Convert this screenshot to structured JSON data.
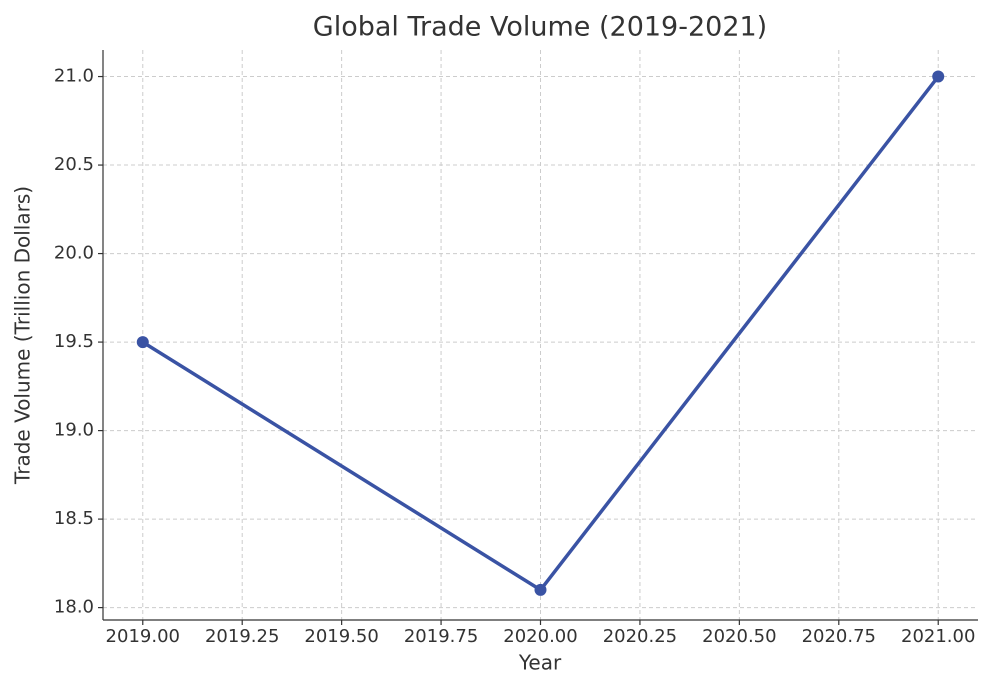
{
  "chart_data": {
    "type": "line",
    "title": "Global Trade Volume (2019-2021)",
    "x_label": "Year",
    "y_label": "Trade Volume (Trillion Dollars)",
    "x": [
      2019,
      2020,
      2021
    ],
    "series": [
      {
        "name": "Trade Volume",
        "color": "#3a53a4",
        "values": [
          19.5,
          18.1,
          21.0
        ]
      }
    ],
    "xlim": [
      2018.9,
      2021.1
    ],
    "xticks": [
      {
        "value": 2019,
        "label": "2019.00"
      },
      {
        "value": 2019.25,
        "label": "2019.25"
      },
      {
        "value": 2019.5,
        "label": "2019.50"
      },
      {
        "value": 2019.75,
        "label": "2019.75"
      },
      {
        "value": 2020,
        "label": "2020.00"
      },
      {
        "value": 2020.25,
        "label": "2020.25"
      },
      {
        "value": 2020.5,
        "label": "2020.50"
      },
      {
        "value": 2020.75,
        "label": "2020.75"
      },
      {
        "value": 2021,
        "label": "2021.00"
      }
    ],
    "ylim": [
      17.93,
      21.15
    ],
    "yticks": [
      {
        "value": 18,
        "label": "18.0"
      },
      18.5,
      {
        "value": 19,
        "label": "19.0"
      },
      19.5,
      {
        "value": 20,
        "label": "20.0"
      },
      20.5,
      {
        "value": 21,
        "label": "21.0"
      }
    ],
    "grid": true
  }
}
